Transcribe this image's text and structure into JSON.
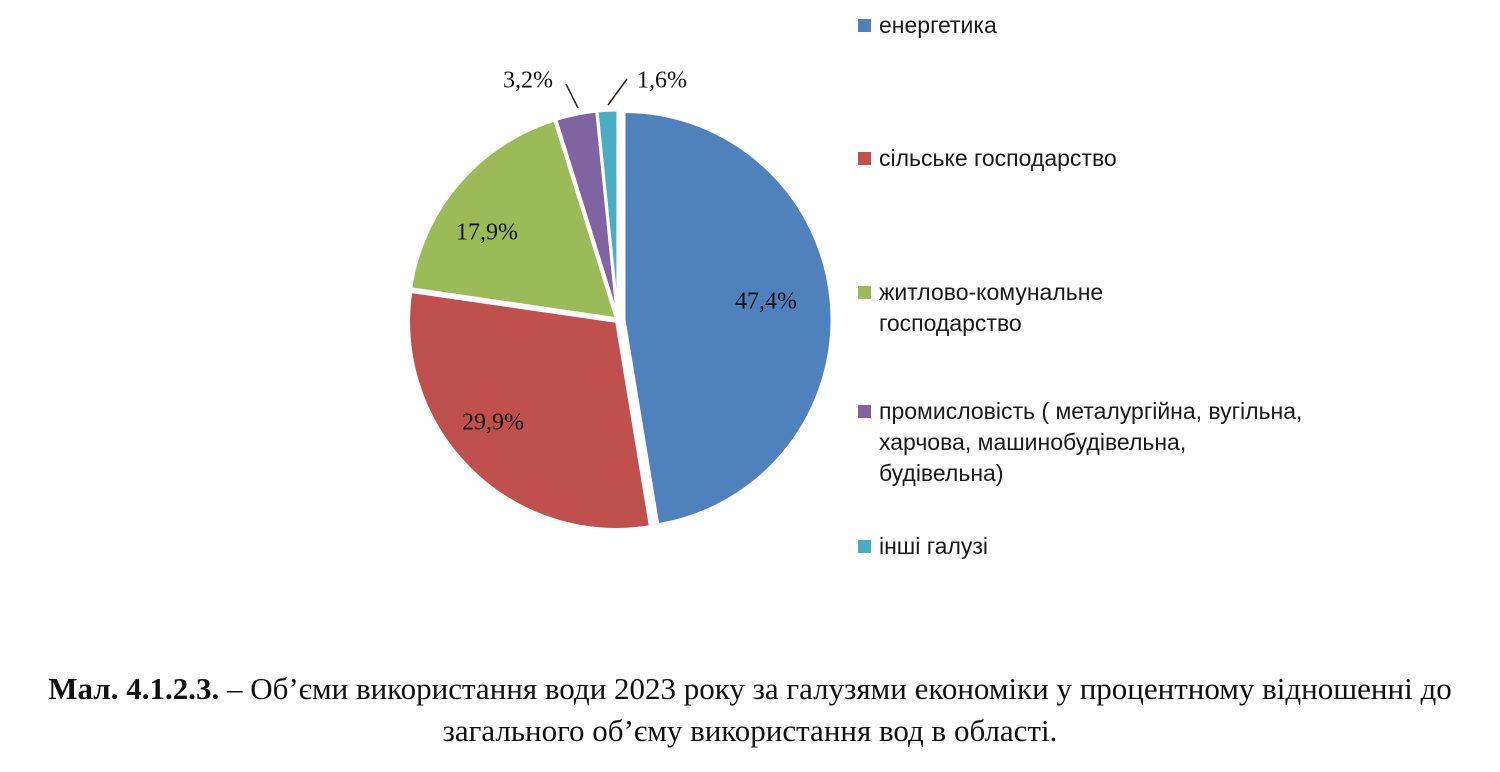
{
  "chart_data": {
    "type": "pie",
    "title": "",
    "categories": [
      "енергетика",
      "сільське господарство",
      "житлово-комунальне господарство",
      "промисловість ( металургійна, вугільна, харчова, машинобудівельна, будівельна)",
      "інші галузі"
    ],
    "values": [
      47.4,
      29.9,
      17.9,
      3.2,
      1.6
    ],
    "labels": [
      "47,4%",
      "29,9%",
      "17,9%",
      "3,2%",
      "1,6%"
    ],
    "colors": [
      "#4F81BD",
      "#C0504D",
      "#9BBB59",
      "#8064A2",
      "#4BACC6"
    ],
    "legend_position": "right",
    "start_angle_deg": 0,
    "direction": "clockwise"
  },
  "caption": {
    "number": "Мал. 4.1.2.3.",
    "text": " – Об’єми використання води 2023 року за галузями економіки у процентному відношенні до загального об’єму використання вод в області."
  }
}
